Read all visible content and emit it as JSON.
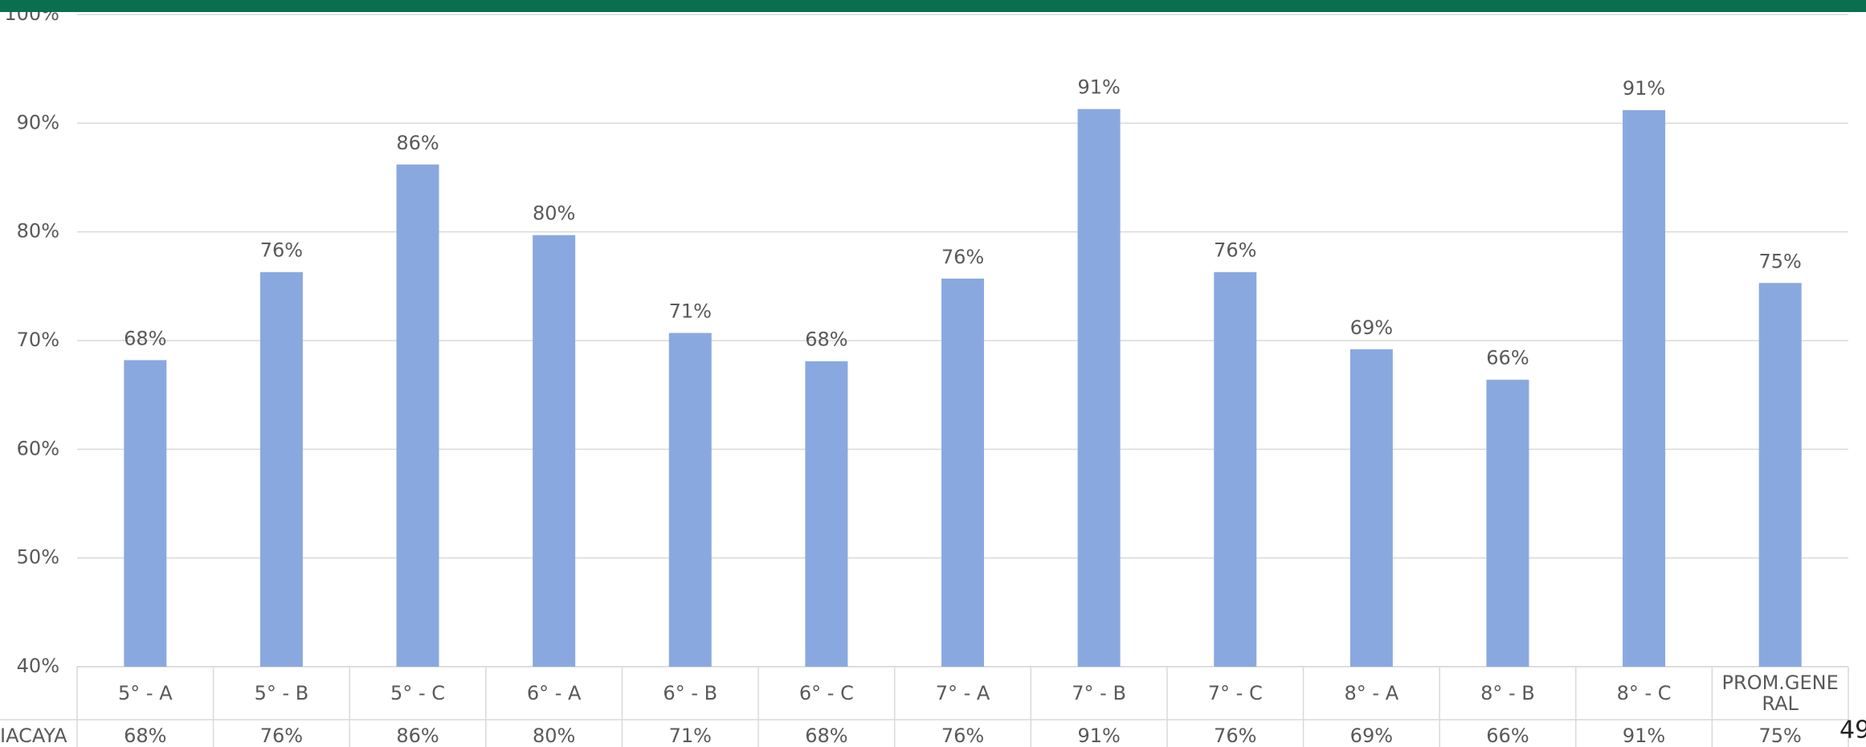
{
  "chart_data": {
    "type": "bar",
    "categories": [
      "5° - A",
      "5° - B",
      "5° - C",
      "6° - A",
      "6° - B",
      "6° - C",
      "7° - A",
      "7° - B",
      "7° - C",
      "8° - A",
      "8° - B",
      "8° - C",
      "PROM.GENERAL"
    ],
    "series_name": "IACAYA",
    "values": [
      68.2,
      76.3,
      86.2,
      79.7,
      70.7,
      68.1,
      75.7,
      91.3,
      76.3,
      69.2,
      66.4,
      91.2,
      75.3
    ],
    "value_labels": [
      "68%",
      "76%",
      "86%",
      "80%",
      "71%",
      "68%",
      "76%",
      "91%",
      "76%",
      "69%",
      "66%",
      "91%",
      "75%"
    ],
    "color": "#8aa8e0",
    "ylim": [
      40,
      100
    ],
    "yticks": [
      {
        "value": 40,
        "label": "40%"
      },
      {
        "value": 50,
        "label": "50%"
      },
      {
        "value": 60,
        "label": "60%"
      },
      {
        "value": 70,
        "label": "70%"
      },
      {
        "value": 80,
        "label": "80%"
      },
      {
        "value": 90,
        "label": "90%"
      },
      {
        "value": 100,
        "label": "100%"
      }
    ],
    "grid": true,
    "page_number": "49"
  }
}
